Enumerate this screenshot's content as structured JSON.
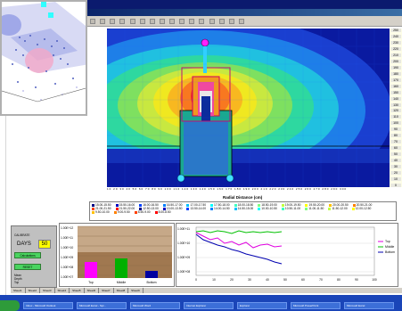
{
  "contour": {
    "xlabel": "Radial Distance (cm)",
    "yticks": [
      "250",
      "240",
      "230",
      "220",
      "210",
      "200",
      "190",
      "180",
      "170",
      "160",
      "150",
      "140",
      "130",
      "120",
      "110",
      "100",
      "90",
      "80",
      "70",
      "60",
      "50",
      "40",
      "30",
      "20",
      "10",
      "0"
    ],
    "xticks_line": "10 20 30 40 50 60 70 80 90 100 110 120 130 140 150 160 170 180 190 200 210 220 230 240 250 260 270 280 290 300"
  },
  "legend": {
    "items": [
      "15.00-15.50",
      "15.50-16.00",
      "16.00-16.50",
      "16.50-17.00",
      "17.00-17.50",
      "17.50-18.00",
      "18.00-18.50",
      "18.50-19.00",
      "19.00-19.50",
      "19.50-20.00",
      "20.00-20.50",
      "20.50-21.00",
      "21.00-21.50",
      "21.50-22.00",
      "12.50-13.00",
      "13.00-13.50",
      "13.50-14.00",
      "14.00-14.50",
      "14.50-15.00",
      "10.00-10.50",
      "10.50-11.00",
      "11.00-11.50",
      "11.50-12.00",
      "12.00-12.50",
      "9.50-10.00",
      "9.00-9.50",
      "8.50-9.00",
      "8.00-8.50"
    ],
    "colors": [
      "#000080",
      "#0000c0",
      "#0040ff",
      "#0080ff",
      "#00c0ff",
      "#00ffff",
      "#40ffc0",
      "#80ff80",
      "#c0ff40",
      "#ffff00",
      "#ffc000",
      "#ff8000",
      "#ff4000",
      "#ff0000"
    ]
  },
  "controls": {
    "days_label": "DAYS",
    "days_value": "50",
    "small_top": "CALIBRATE",
    "btn_1": "Calculations",
    "btn_2": "RESET",
    "lbl_a": "Mean",
    "lbl_b": "Depth",
    "lbl_c": "Top"
  },
  "bar_chart": {
    "categories": [
      "Top",
      "Middle",
      "Bottom"
    ],
    "colors": [
      "#ff00ff",
      "#00b000",
      "#0000a0"
    ],
    "yticks": [
      "1.00E+12",
      "1.00E+11",
      "1.00E+10",
      "1.00E+09",
      "1.00E+08",
      "1.00E+07"
    ]
  },
  "chart_data": {
    "type": "line",
    "series": [
      {
        "name": "Top",
        "color": "#e000e0"
      },
      {
        "name": "Middle",
        "color": "#00c000"
      },
      {
        "name": "Bottom",
        "color": "#0000b0"
      }
    ],
    "xticks": [
      "0",
      "10",
      "20",
      "30",
      "40",
      "50",
      "60",
      "70",
      "80",
      "90",
      "100"
    ],
    "yticks": [
      "1.00E+11",
      "1.00E+10",
      "1.00E+09",
      "1.00E+08"
    ]
  },
  "tabs": [
    "Sheet1",
    "Sheet2",
    "Sheet3",
    "Sheet4",
    "Sheet5",
    "Sheet6",
    "Sheet7",
    "Sheet8",
    "Sheet9"
  ],
  "taskbar": [
    "start",
    "Inbox - Microsoft Outlook",
    "Microsoft Excel - Spr...",
    "Microsoft Word",
    "Internet Explorer",
    "Explorer",
    "Microsoft PowerPoint",
    "Microsoft Excel"
  ]
}
